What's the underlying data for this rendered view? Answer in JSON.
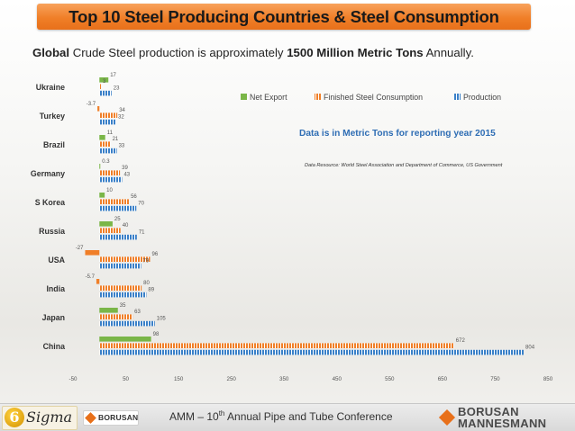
{
  "header": {
    "title": "Top 10 Steel Producing Countries & Steel Consumption"
  },
  "subtitle": {
    "part1": "Global",
    "part2": " Crude Steel production is approximately ",
    "part3": "1500 Million Metric Tons",
    "part4": " Annually."
  },
  "chart_data": {
    "type": "bar",
    "orientation": "horizontal",
    "categories": [
      "Ukraine",
      "Turkey",
      "Brazil",
      "Germany",
      "S Korea",
      "Russia",
      "USA",
      "India",
      "Japan",
      "China"
    ],
    "series": [
      {
        "name": "Net Export",
        "values": [
          17,
          -3.7,
          11,
          0.3,
          10,
          25,
          -27,
          -5.7,
          35,
          98
        ],
        "labels": [
          "17",
          "-3.7",
          "11",
          "0.3",
          "10",
          "25",
          "-27",
          "-5.7",
          "35",
          "98"
        ],
        "color": "#7ab648"
      },
      {
        "name": "Finished Steel Consumption",
        "values": [
          3,
          34,
          21,
          39,
          56,
          40,
          96,
          80,
          63,
          672
        ],
        "labels": [
          "3",
          "34",
          "21",
          "39",
          "56",
          "40",
          "96",
          "80",
          "63",
          "672"
        ],
        "color": "#f07f28"
      },
      {
        "name": "Production",
        "values": [
          23,
          32,
          33,
          43,
          70,
          71,
          79,
          89,
          105,
          804
        ],
        "labels": [
          "23",
          "32",
          "33",
          "43",
          "70",
          "71",
          "79",
          "89",
          "105",
          "804"
        ],
        "color": "#3a80c8"
      }
    ],
    "xlim": [
      -50,
      850
    ],
    "xticks": [
      -50,
      50,
      150,
      250,
      350,
      450,
      550,
      650,
      750,
      850
    ],
    "legend_position": "top-right",
    "annotation": "Data is in Metric Tons for reporting year 2015",
    "source_note": "Data Resource: World Steel Association and Department of Commerce, US Government",
    "negative_color": "#f07f28"
  },
  "footer": {
    "sigma_logo": "6 Sigma",
    "borusan_small": "BORUSAN",
    "conference_pre": "AMM – 10",
    "conference_sup": "th",
    "conference_post": " Annual Pipe and Tube Conference",
    "bm_line1": "BORUSAN",
    "bm_line2": "MANNESMANN"
  }
}
